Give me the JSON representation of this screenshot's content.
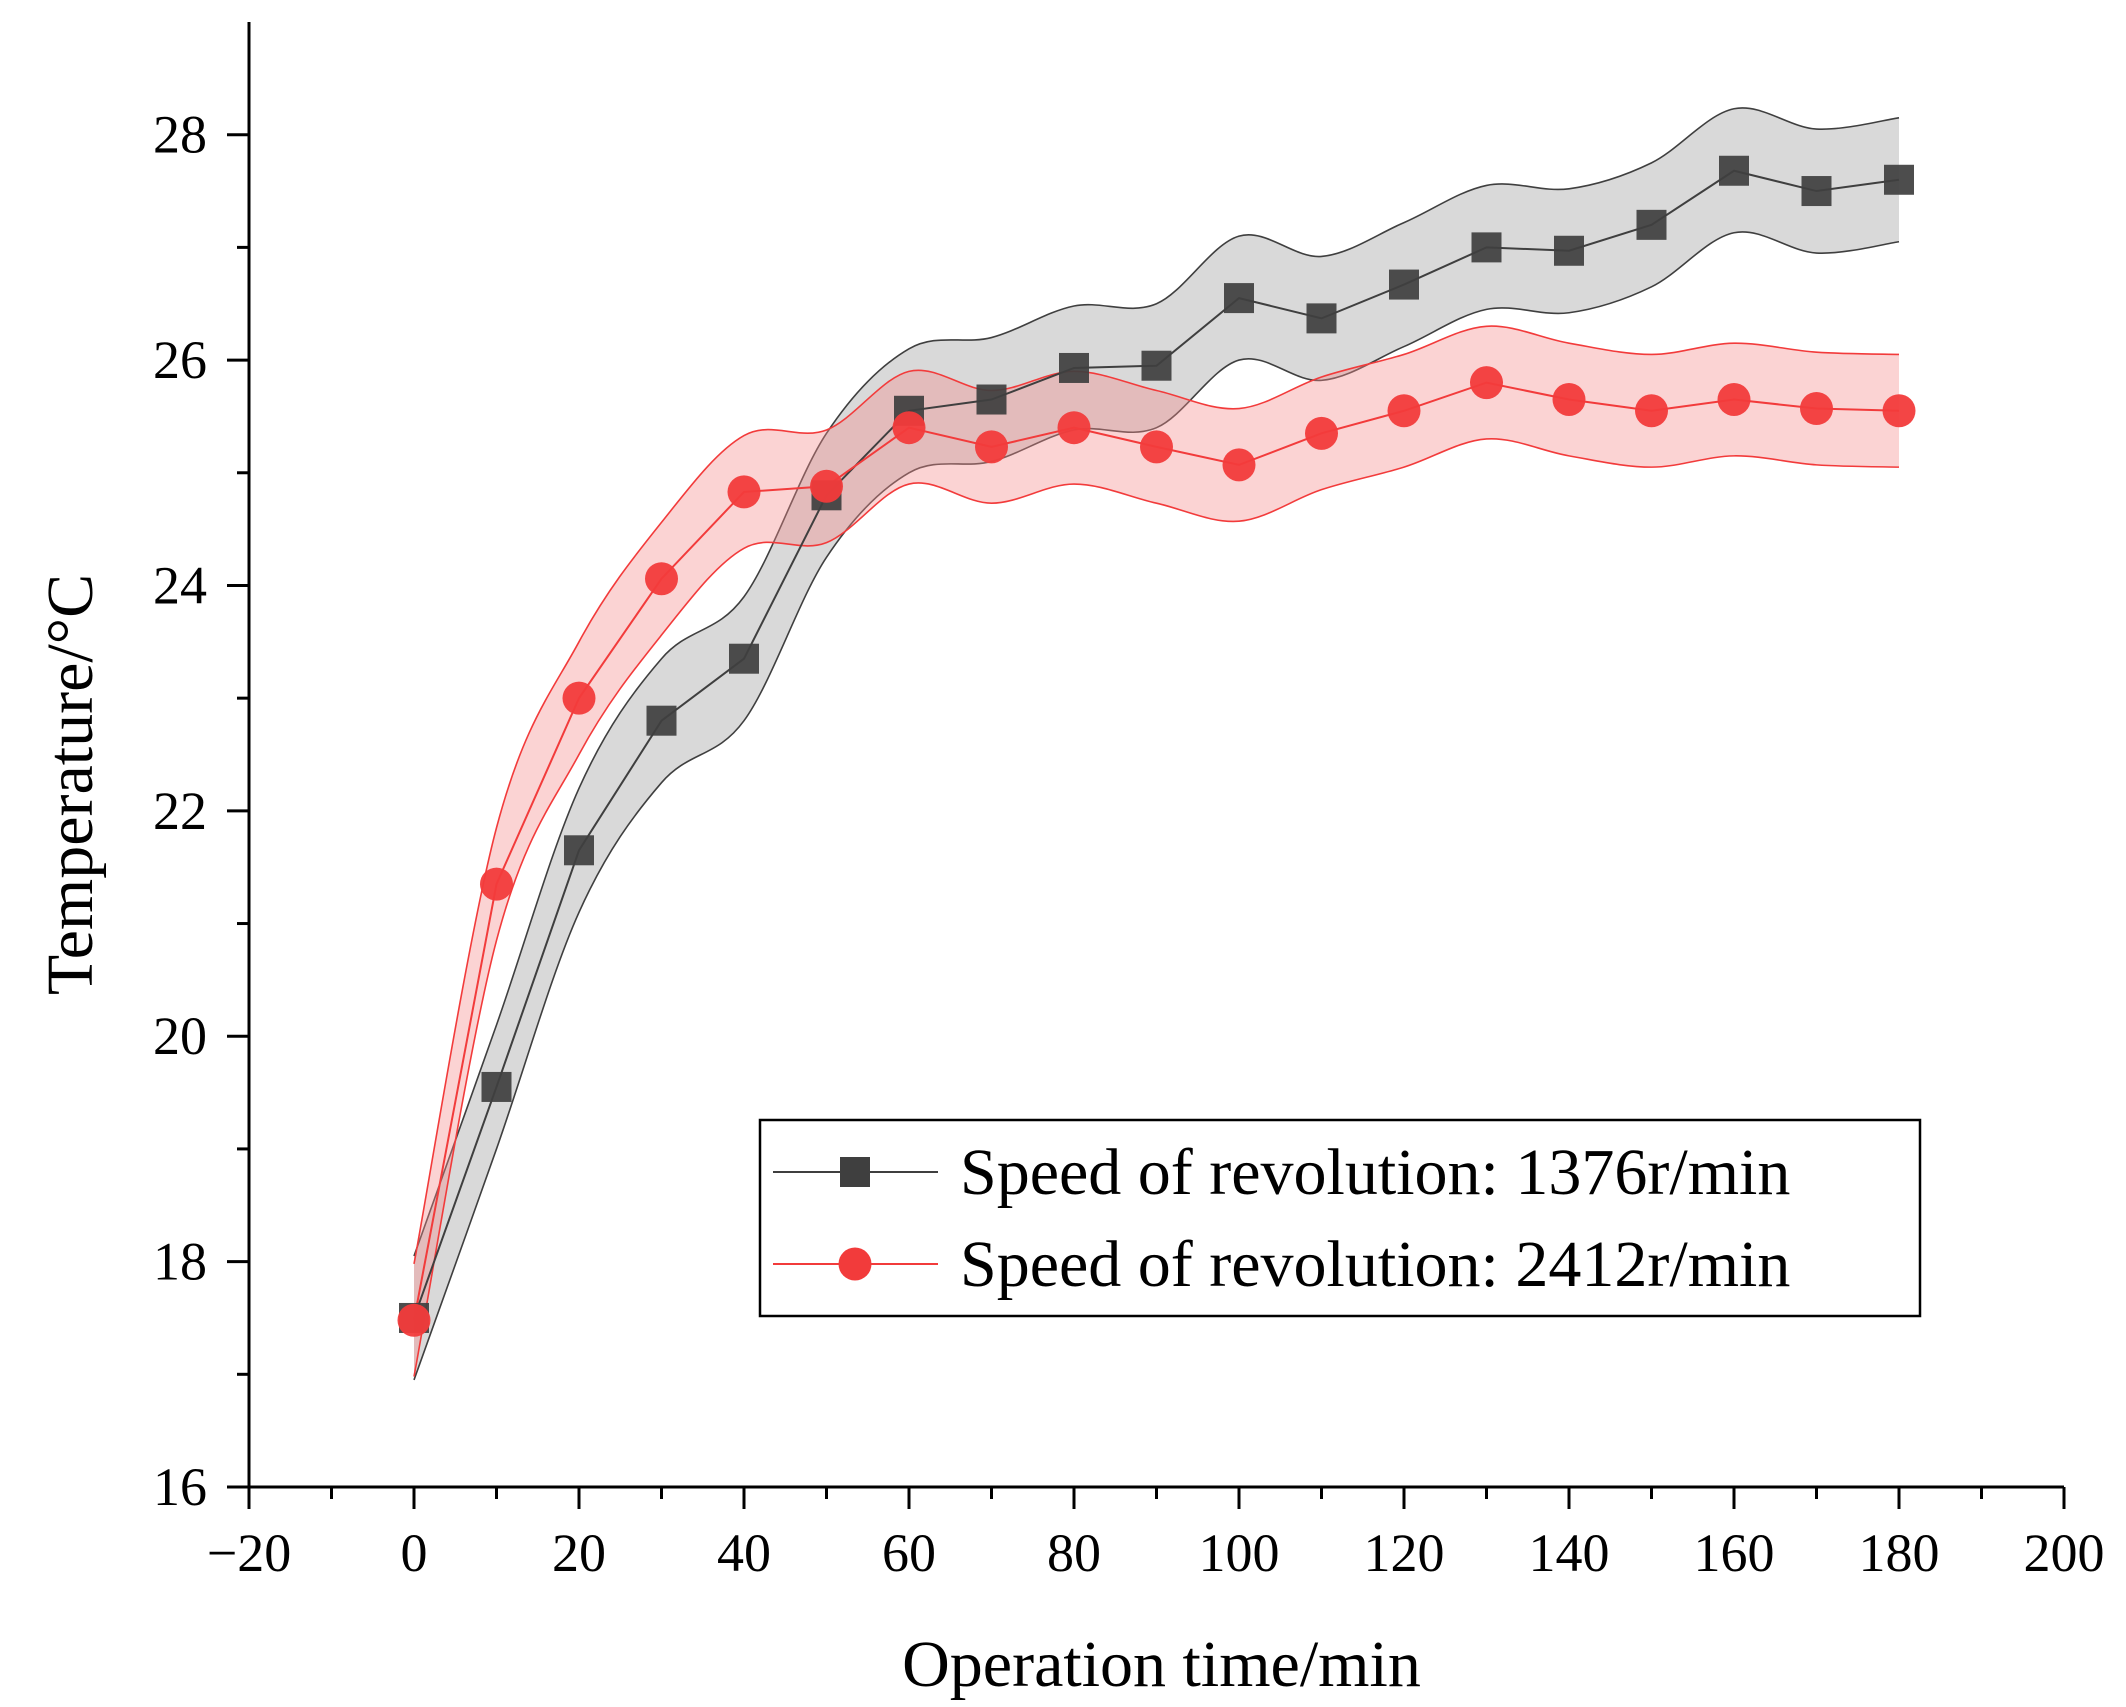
{
  "chart_data": {
    "type": "line",
    "title": "",
    "xlabel": "Operation time/min",
    "ylabel": "Temperature/°C",
    "xlim": [
      -20,
      200
    ],
    "ylim": [
      16,
      29
    ],
    "x_ticks": [
      -20,
      0,
      20,
      40,
      60,
      80,
      100,
      120,
      140,
      160,
      180,
      200
    ],
    "x_tick_labels": [
      "−20",
      "0",
      "20",
      "40",
      "60",
      "80",
      "100",
      "120",
      "140",
      "160",
      "180",
      "200"
    ],
    "y_ticks": [
      16,
      18,
      20,
      22,
      24,
      26,
      28
    ],
    "y_tick_labels": [
      "16",
      "18",
      "20",
      "22",
      "24",
      "26",
      "28"
    ],
    "legend_position": "bottom-right",
    "x": [
      0,
      10,
      20,
      30,
      40,
      50,
      60,
      70,
      80,
      90,
      100,
      110,
      120,
      130,
      140,
      150,
      160,
      170,
      180
    ],
    "series": [
      {
        "name": "Speed of revolution: 1376r/min",
        "marker": "square",
        "color": "#3f3f3f",
        "band_color": "#9a9a9a",
        "band_halfwidth": 0.55,
        "values": [
          17.5,
          19.55,
          21.65,
          22.8,
          23.35,
          24.8,
          25.55,
          25.65,
          25.93,
          25.95,
          26.55,
          26.37,
          26.67,
          27.0,
          26.97,
          27.2,
          27.68,
          27.5,
          27.6
        ]
      },
      {
        "name": "Speed of revolution: 2412r/min",
        "marker": "circle",
        "color": "#f23b3b",
        "band_color": "#f58c8c",
        "band_halfwidth": 0.5,
        "values": [
          17.48,
          21.35,
          23.0,
          24.06,
          24.83,
          24.88,
          25.4,
          25.23,
          25.4,
          25.23,
          25.07,
          25.35,
          25.55,
          25.8,
          25.65,
          25.55,
          25.65,
          25.57,
          25.55
        ]
      }
    ]
  }
}
